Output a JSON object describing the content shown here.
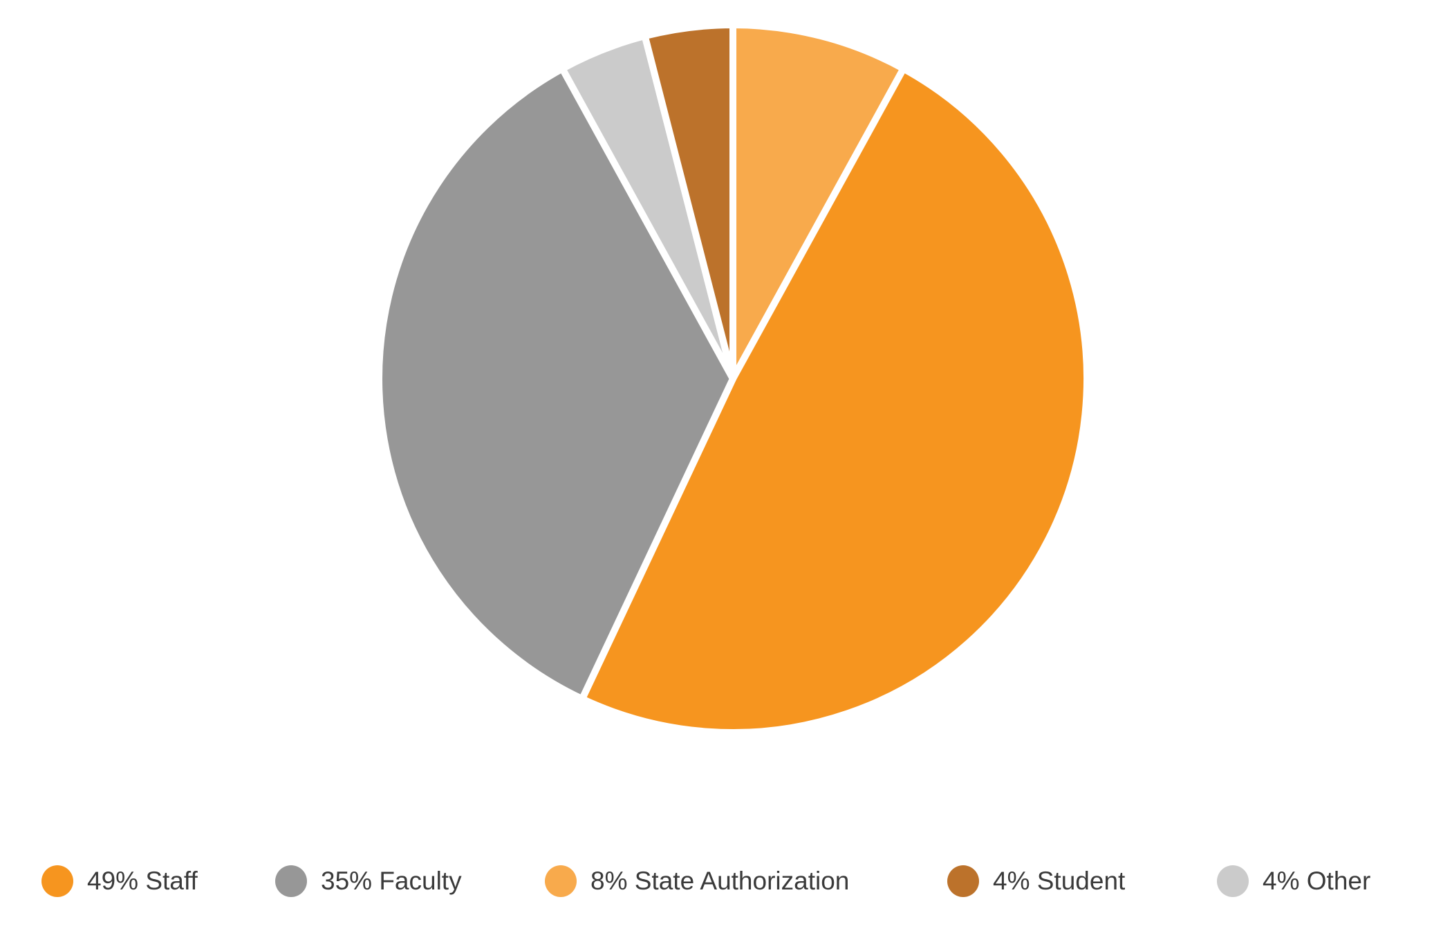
{
  "chart_data": {
    "type": "pie",
    "start_angle_deg": 0,
    "direction": "clockwise",
    "slices": [
      {
        "key": "state-authorization",
        "label": "8% State Authorization",
        "value": 8,
        "color": "#F8AA4C"
      },
      {
        "key": "staff",
        "label": "49% Staff",
        "value": 49,
        "color": "#F6951F"
      },
      {
        "key": "faculty",
        "label": "35% Faculty",
        "value": 35,
        "color": "#979797"
      },
      {
        "key": "other",
        "label": "4% Other",
        "value": 4,
        "color": "#CBCBCB"
      },
      {
        "key": "student",
        "label": "4% Student",
        "value": 4,
        "color": "#BC722B"
      }
    ]
  },
  "legend": {
    "items": [
      {
        "label": "49% Staff",
        "color": "#F6951F"
      },
      {
        "label": "35% Faculty",
        "color": "#979797"
      },
      {
        "label": "8% State Authorization",
        "color": "#F8AA4C"
      },
      {
        "label": "4% Student",
        "color": "#BC722B"
      },
      {
        "label": "4% Other",
        "color": "#CBCBCB"
      }
    ]
  }
}
